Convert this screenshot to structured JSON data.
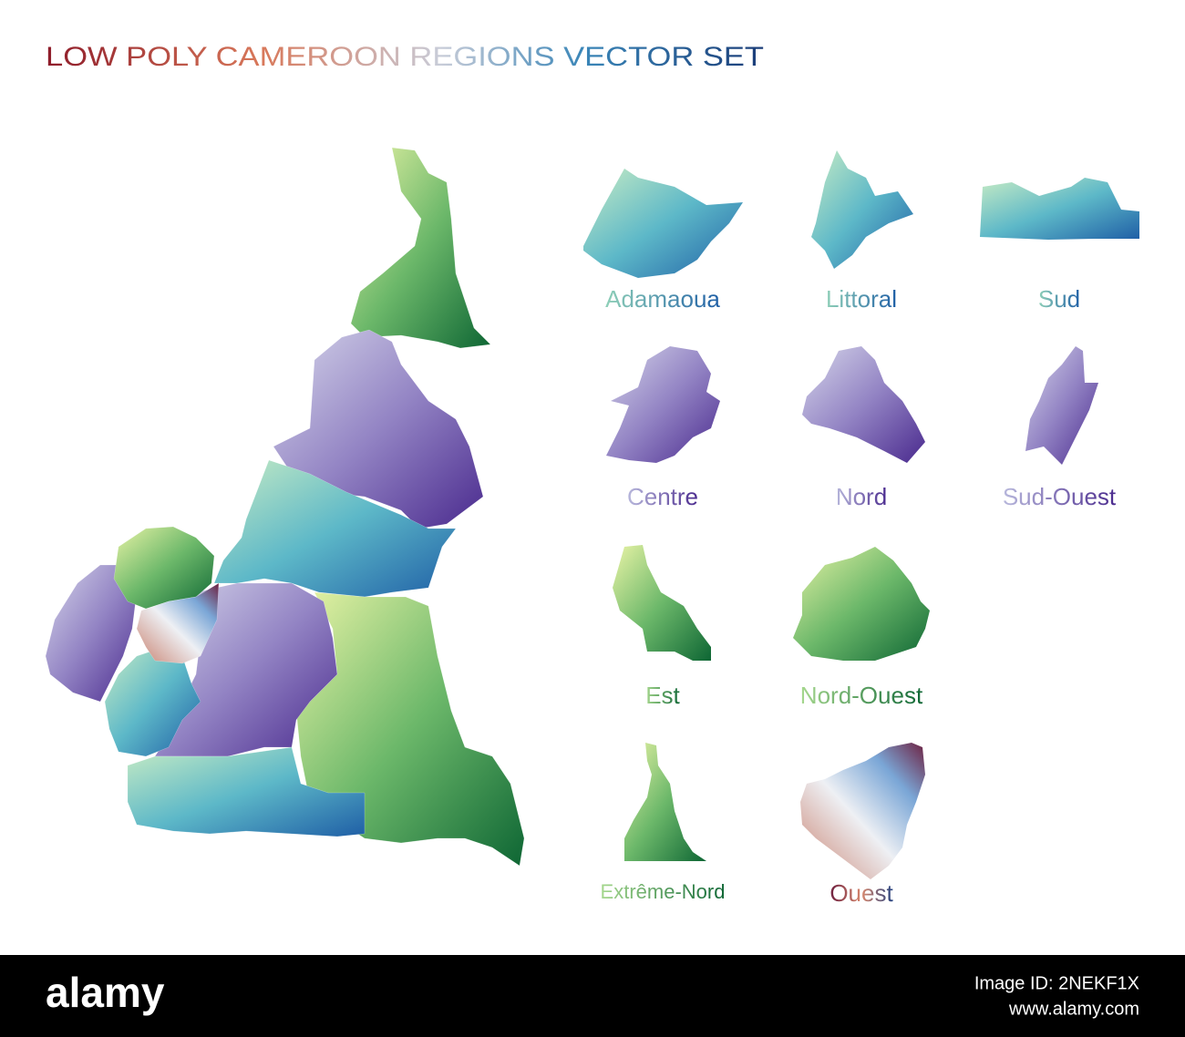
{
  "title": "LOW POLY CAMEROON REGIONS VECTOR SET",
  "regions": [
    {
      "label": "Adamaoua"
    },
    {
      "label": "Littoral"
    },
    {
      "label": "Sud"
    },
    {
      "label": "Centre"
    },
    {
      "label": "Nord"
    },
    {
      "label": "Sud-Ouest"
    },
    {
      "label": "Est"
    },
    {
      "label": "Nord-Ouest"
    },
    {
      "label": "Extrême-Nord"
    },
    {
      "label": "Ouest"
    }
  ],
  "footer": {
    "brand": "alamy",
    "image_id": "Image ID: 2NEKF1X",
    "url": "www.alamy.com"
  }
}
